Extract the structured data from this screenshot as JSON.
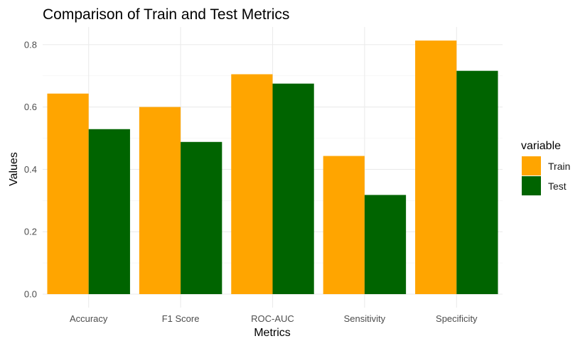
{
  "chart_data": {
    "type": "bar",
    "title": "Comparison of Train and Test Metrics",
    "xlabel": "Metrics",
    "ylabel": "Values",
    "categories": [
      "Accuracy",
      "F1 Score",
      "ROC-AUC",
      "Sensitivity",
      "Specificity"
    ],
    "series": [
      {
        "name": "Train",
        "color": "#FFA500",
        "values": [
          0.643,
          0.6,
          0.705,
          0.443,
          0.813
        ]
      },
      {
        "name": "Test",
        "color": "#006400",
        "values": [
          0.529,
          0.488,
          0.675,
          0.318,
          0.716
        ]
      }
    ],
    "ylim": [
      0,
      0.85
    ],
    "yticks": [
      0.0,
      0.2,
      0.4,
      0.6,
      0.8
    ],
    "ytick_labels": [
      "0.0",
      "0.2",
      "0.4",
      "0.6",
      "0.8"
    ],
    "grid": true,
    "legend": {
      "title": "variable",
      "placement": "right"
    }
  }
}
